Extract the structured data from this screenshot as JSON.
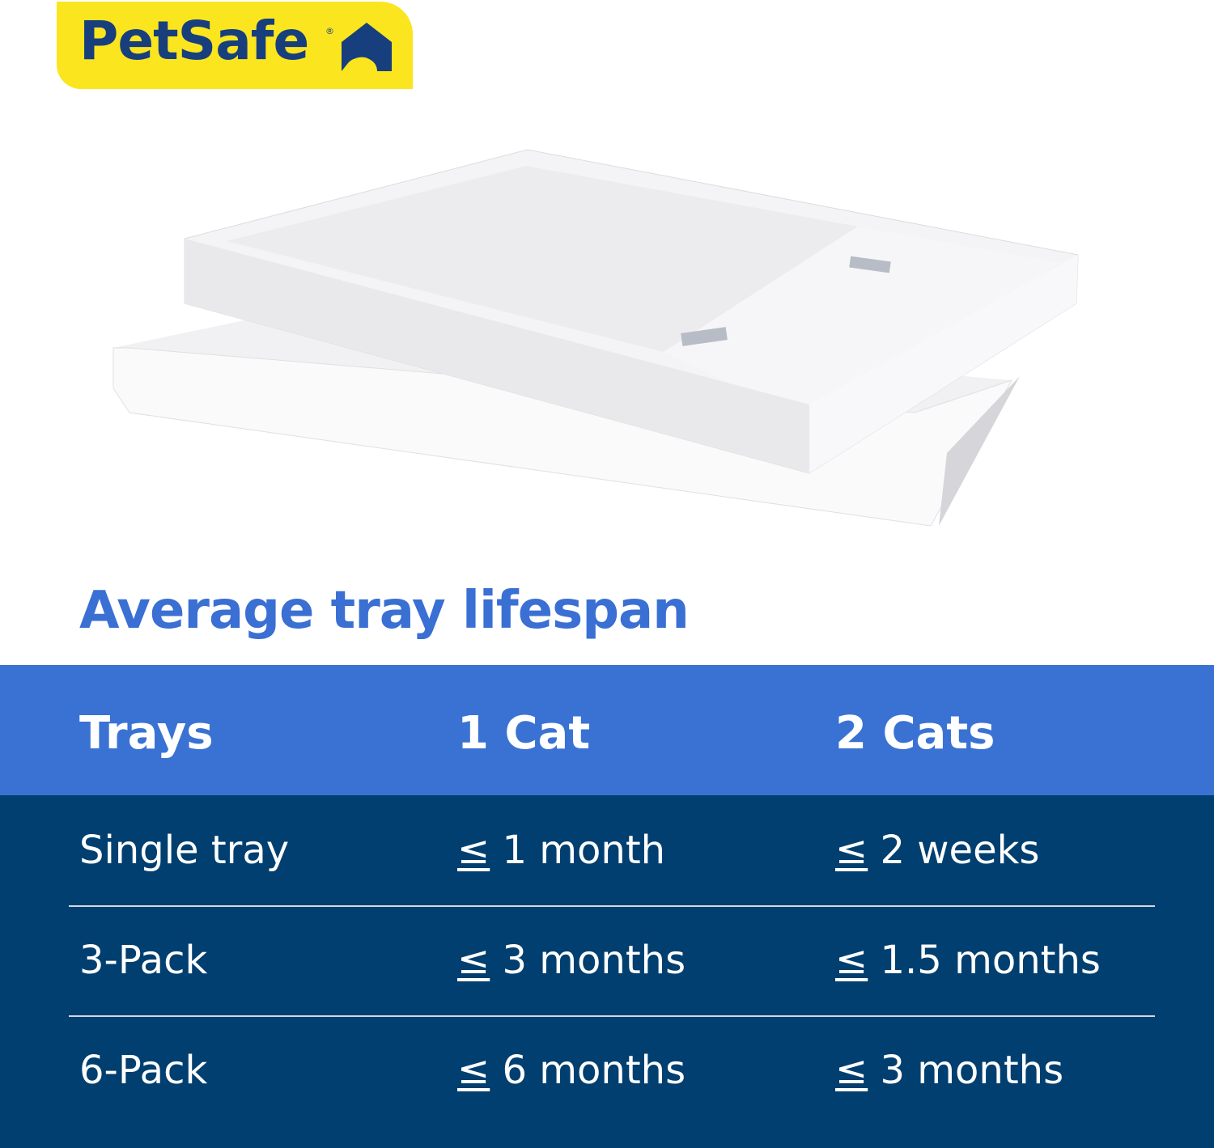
{
  "brand": {
    "logo_text": "PetSafe",
    "registered": "®",
    "logo_bg": "#fbe51f",
    "logo_color": "#173f7d"
  },
  "heading": "Average tray lifespan",
  "colors": {
    "heading": "#3a6fd3",
    "header_row": "#3a72d4",
    "body_rows": "#003f70"
  },
  "table": {
    "headers": [
      "Trays",
      "1 Cat",
      "2 Cats"
    ],
    "symbol": "≤",
    "rows": [
      {
        "tray": "Single tray",
        "one_cat": "1 month",
        "two_cats": "2 weeks"
      },
      {
        "tray": "3-Pack",
        "one_cat": "3 months",
        "two_cats": "1.5 months"
      },
      {
        "tray": "6-Pack",
        "one_cat": "6 months",
        "two_cats": "3 months"
      }
    ]
  }
}
